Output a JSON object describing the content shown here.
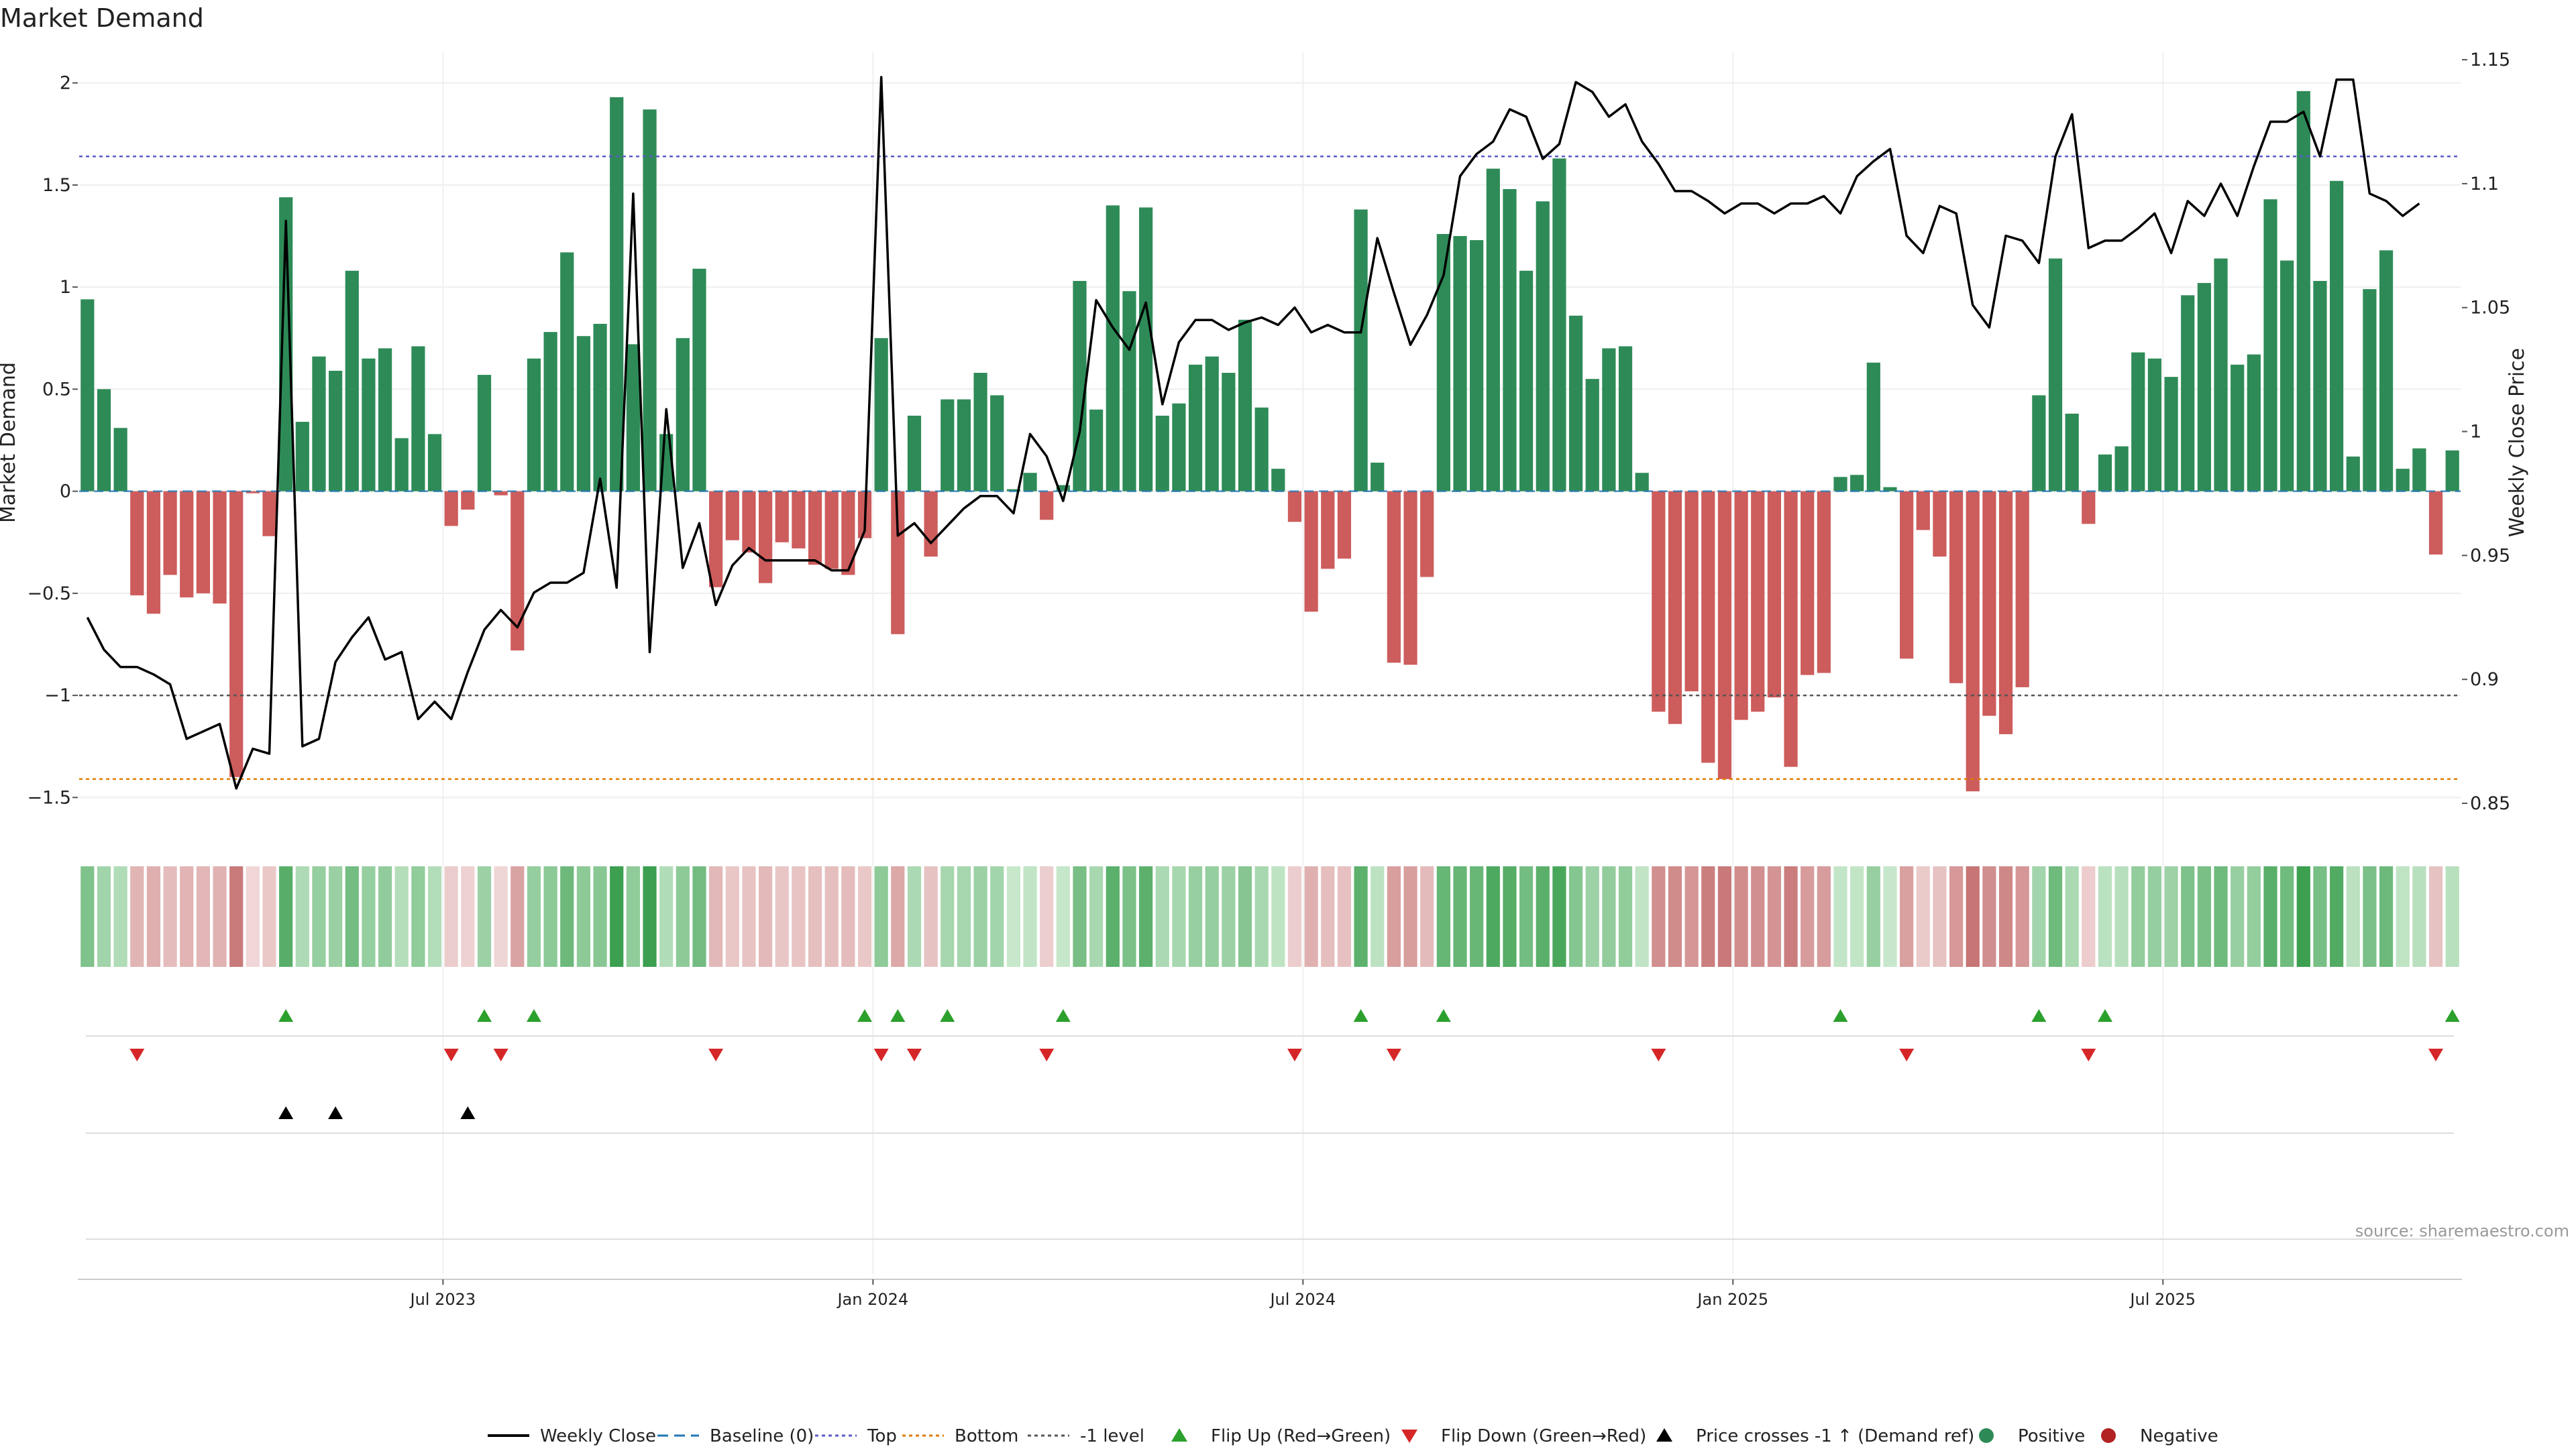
{
  "chart_data": {
    "type": "bar",
    "title": "Market Demand",
    "ylabel": "Market Demand",
    "y2label": "Weekly Close Price",
    "ylim": [
      -1.65,
      2.15
    ],
    "y2lim": [
      0.84,
      1.153
    ],
    "yticks": [
      -1.5,
      -1,
      -0.5,
      0,
      0.5,
      1,
      1.5,
      2
    ],
    "ytick_labels": [
      "−1.5",
      "−1",
      "−0.5",
      "0",
      "0.5",
      "1",
      "1.5",
      "2"
    ],
    "y2ticks": [
      0.85,
      0.9,
      0.95,
      1,
      1.05,
      1.1,
      1.15
    ],
    "y2tick_labels": [
      "0.85",
      "0.9",
      "0.95",
      "1",
      "1.05",
      "1.1",
      "1.15"
    ],
    "xticks": [
      22,
      48,
      74,
      100,
      126
    ],
    "xtick_labels": [
      "Jul 2023",
      "Jan 2024",
      "Jul 2024",
      "Jan 2025",
      "Jul 2025"
    ],
    "ref_lines": [
      {
        "name": "Top",
        "value": 1.64,
        "color": "#5b5bc8",
        "dash": "dotted"
      },
      {
        "name": "-1 level",
        "value": -1.0,
        "color": "#555555",
        "dash": "dotted"
      },
      {
        "name": "Bottom",
        "value": -1.41,
        "color": "#e07b00",
        "dash": "dotted"
      }
    ],
    "demand": [
      0.94,
      0.5,
      0.31,
      -0.51,
      -0.6,
      -0.41,
      -0.52,
      -0.5,
      -0.55,
      -1.4,
      -0.01,
      -0.22,
      1.44,
      0.34,
      0.66,
      0.59,
      1.08,
      0.65,
      0.7,
      0.26,
      0.71,
      0.28,
      -0.17,
      -0.09,
      0.57,
      -0.02,
      -0.78,
      0.65,
      0.78,
      1.17,
      0.76,
      0.82,
      1.93,
      0.72,
      1.87,
      0.28,
      0.75,
      1.09,
      -0.47,
      -0.24,
      -0.3,
      -0.45,
      -0.25,
      -0.28,
      -0.36,
      -0.38,
      -0.41,
      -0.23,
      0.75,
      -0.7,
      0.37,
      -0.32,
      0.45,
      0.45,
      0.58,
      0.47,
      0.01,
      0.09,
      -0.14,
      0.03,
      1.03,
      0.4,
      1.4,
      0.98,
      1.39,
      0.37,
      0.43,
      0.62,
      0.66,
      0.58,
      0.84,
      0.41,
      0.11,
      -0.15,
      -0.59,
      -0.38,
      -0.33,
      1.38,
      0.14,
      -0.84,
      -0.85,
      -0.42,
      1.26,
      1.25,
      1.23,
      1.58,
      1.48,
      1.08,
      1.42,
      1.63,
      0.86,
      0.55,
      0.7,
      0.71,
      0.09,
      -1.08,
      -1.14,
      -0.98,
      -1.33,
      -1.41,
      -1.12,
      -1.08,
      -1.01,
      -1.35,
      -0.9,
      -0.89,
      0.07,
      0.08,
      0.63,
      0.02,
      -0.82,
      -0.19,
      -0.32,
      -0.94,
      -1.47,
      -1.1,
      -1.19,
      -0.96,
      0.47,
      1.14,
      0.38,
      -0.16,
      0.18,
      0.22,
      0.68,
      0.65,
      0.56,
      0.96,
      1.02,
      1.14,
      0.62,
      0.67,
      1.43,
      1.13,
      1.96,
      1.03,
      1.52,
      0.17,
      0.99,
      1.18,
      0.11,
      0.21,
      -0.31,
      0.2
    ],
    "close": [
      0.925,
      0.912,
      0.905,
      0.905,
      0.902,
      0.898,
      0.876,
      0.879,
      0.882,
      0.856,
      0.872,
      0.87,
      1.085,
      0.873,
      0.876,
      0.907,
      0.917,
      0.925,
      0.908,
      0.911,
      0.884,
      0.891,
      0.884,
      0.903,
      0.92,
      0.928,
      0.921,
      0.935,
      0.939,
      0.939,
      0.943,
      0.981,
      0.937,
      1.096,
      0.911,
      1.009,
      0.945,
      0.963,
      0.93,
      0.946,
      0.953,
      0.948,
      0.948,
      0.948,
      0.948,
      0.944,
      0.944,
      0.96,
      1.143,
      0.958,
      0.963,
      0.955,
      0.962,
      0.969,
      0.974,
      0.974,
      0.967,
      0.999,
      0.99,
      0.972,
      1.0,
      1.053,
      1.042,
      1.033,
      1.052,
      1.011,
      1.036,
      1.045,
      1.045,
      1.041,
      1.044,
      1.046,
      1.043,
      1.05,
      1.04,
      1.043,
      1.04,
      1.04,
      1.078,
      1.056,
      1.035,
      1.047,
      1.063,
      1.103,
      1.112,
      1.117,
      1.13,
      1.127,
      1.11,
      1.116,
      1.141,
      1.137,
      1.127,
      1.132,
      1.117,
      1.108,
      1.097,
      1.097,
      1.093,
      1.088,
      1.092,
      1.092,
      1.088,
      1.092,
      1.092,
      1.095,
      1.088,
      1.103,
      1.109,
      1.114,
      1.079,
      1.072,
      1.091,
      1.088,
      1.051,
      1.042,
      1.079,
      1.077,
      1.068,
      1.111,
      1.128,
      1.074,
      1.077,
      1.077,
      1.082,
      1.088,
      1.072,
      1.093,
      1.087,
      1.1,
      1.087,
      1.107,
      1.125,
      1.125,
      1.129,
      1.111,
      1.142,
      1.142,
      1.096,
      1.093,
      1.087,
      1.092
    ],
    "strip_values": [
      0.94,
      0.5,
      0.31,
      -0.51,
      -0.6,
      -0.41,
      -0.52,
      -0.5,
      -0.55,
      -1.4,
      -0.01,
      -0.22,
      1.44,
      0.34,
      0.66,
      0.59,
      1.08,
      0.65,
      0.7,
      0.26,
      0.71,
      0.28,
      -0.17,
      -0.09,
      0.57,
      -0.02,
      -0.78,
      0.65,
      0.78,
      1.17,
      0.76,
      0.82,
      1.93,
      0.72,
      1.87,
      0.28,
      0.75,
      1.09,
      -0.47,
      -0.24,
      -0.3,
      -0.45,
      -0.25,
      -0.28,
      -0.36,
      -0.38,
      -0.41,
      -0.23,
      0.75,
      -0.7,
      0.37,
      -0.32,
      0.45,
      0.45,
      0.58,
      0.47,
      0.01,
      0.09,
      -0.14,
      0.03,
      1.03,
      0.4,
      1.4,
      0.98,
      1.39,
      0.37,
      0.43,
      0.62,
      0.66,
      0.58,
      0.84,
      0.41,
      0.11,
      -0.15,
      -0.59,
      -0.38,
      -0.33,
      1.38,
      0.14,
      -0.84,
      -0.85,
      -0.42,
      1.26,
      1.25,
      1.23,
      1.58,
      1.48,
      1.08,
      1.42,
      1.63,
      0.86,
      0.55,
      0.7,
      0.71,
      0.09,
      -1.08,
      -1.14,
      -0.98,
      -1.33,
      -1.41,
      -1.12,
      -1.08,
      -1.01,
      -1.35,
      -0.9,
      -0.89,
      0.07,
      0.08,
      0.63,
      0.02,
      -0.82,
      -0.19,
      -0.32,
      -0.94,
      -1.47,
      -1.1,
      -1.19,
      -0.96,
      0.47,
      1.14,
      0.38,
      -0.16,
      0.18,
      0.22,
      0.68,
      0.65,
      0.56,
      0.96,
      1.02,
      1.14,
      0.62,
      0.67,
      1.43,
      1.13,
      1.96,
      1.03,
      1.52,
      0.17,
      0.99,
      1.18,
      0.11,
      0.21,
      -0.31,
      0.2
    ],
    "flip_up": [
      12,
      24,
      27,
      47,
      49,
      52,
      59,
      77,
      82,
      106,
      118,
      122,
      143
    ],
    "flip_down": [
      3,
      22,
      25,
      38,
      48,
      50,
      58,
      73,
      79,
      95,
      110,
      121,
      142
    ],
    "price_cross": [
      12,
      15,
      23
    ],
    "colors": {
      "positive": "#2e8b57",
      "negative": "#cd5c5c",
      "close": "#000000",
      "flip_up": "#2ca02c",
      "flip_down": "#d62728",
      "baseline": "#1f77b4",
      "legend_negative": "#b22222"
    },
    "legend": [
      {
        "key": "close",
        "label": "Weekly Close"
      },
      {
        "key": "baseline",
        "label": "Baseline (0)"
      },
      {
        "key": "top",
        "label": "Top"
      },
      {
        "key": "bottom",
        "label": "Bottom"
      },
      {
        "key": "minus1",
        "label": "-1 level"
      },
      {
        "key": "flip_up",
        "label": "Flip Up (Red→Green)"
      },
      {
        "key": "flip_down",
        "label": "Flip Down (Green→Red)"
      },
      {
        "key": "price_cross",
        "label": "Price crosses -1 ↑ (Demand ref)"
      },
      {
        "key": "positive",
        "label": "Positive"
      },
      {
        "key": "negative",
        "label": "Negative"
      }
    ],
    "source": "source: sharemaestro.com"
  }
}
